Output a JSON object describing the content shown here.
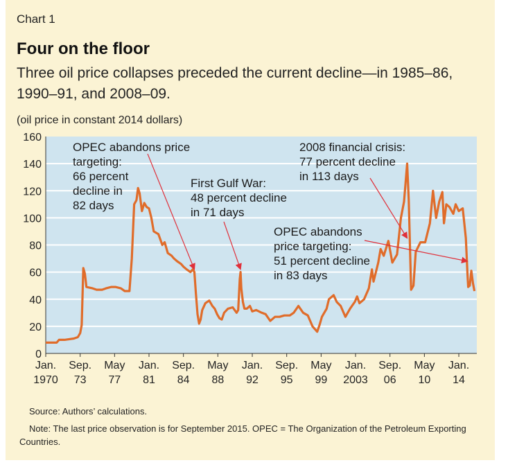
{
  "header": {
    "chart_number": "Chart 1",
    "title": "Four on the floor",
    "subtitle": "Three oil price collapses preceded the current decline—in 1985–86, 1990–91, and 2008–09.",
    "unit_label": "(oil price in constant 2014 dollars)"
  },
  "footer": {
    "source": "Source: Authors’ calculations.",
    "note": "Note: The last price observation is for September 2015. OPEC = The Organization of the Petroleum Exporting Countries."
  },
  "colors": {
    "panel_background": "#fbf3d4",
    "plot_background": "#cfe4ef",
    "line": "#e06c2a",
    "gridline": "#ffffff",
    "arrow": "#e0303a"
  },
  "chart_data": {
    "type": "line",
    "ylim": [
      0,
      160
    ],
    "yticks": [
      0,
      20,
      40,
      60,
      80,
      100,
      120,
      140,
      160
    ],
    "grid": true,
    "xlim": [
      "1970-01",
      "2015-12"
    ],
    "xtick_labels": [
      {
        "month": "Jan.",
        "year": "1970",
        "at": "1970-01"
      },
      {
        "month": "Sep.",
        "year": "73",
        "at": "1973-09"
      },
      {
        "month": "May",
        "year": "77",
        "at": "1977-05"
      },
      {
        "month": "Jan.",
        "year": "81",
        "at": "1981-01"
      },
      {
        "month": "Sep.",
        "year": "84",
        "at": "1984-09"
      },
      {
        "month": "May",
        "year": "88",
        "at": "1988-05"
      },
      {
        "month": "Jan.",
        "year": "92",
        "at": "1992-01"
      },
      {
        "month": "Sep.",
        "year": "95",
        "at": "1995-09"
      },
      {
        "month": "May",
        "year": "99",
        "at": "1999-05"
      },
      {
        "month": "Jan.",
        "year": "2003",
        "at": "2003-01"
      },
      {
        "month": "Sep.",
        "year": "06",
        "at": "2006-09"
      },
      {
        "month": "May",
        "year": "10",
        "at": "2010-05"
      },
      {
        "month": "Jan.",
        "year": "14",
        "at": "2014-01"
      }
    ],
    "series": [
      {
        "points": [
          [
            "1970-01",
            8
          ],
          [
            "1971-03",
            8
          ],
          [
            "1971-06",
            10
          ],
          [
            "1972-01",
            10
          ],
          [
            "1973-01",
            11
          ],
          [
            "1973-06",
            12
          ],
          [
            "1973-09",
            15
          ],
          [
            "1973-11",
            21
          ],
          [
            "1974-01",
            63
          ],
          [
            "1974-03",
            59
          ],
          [
            "1974-05",
            49
          ],
          [
            "1975-01",
            48
          ],
          [
            "1975-06",
            47
          ],
          [
            "1976-01",
            47
          ],
          [
            "1976-06",
            48
          ],
          [
            "1977-01",
            49
          ],
          [
            "1977-06",
            49
          ],
          [
            "1978-01",
            48
          ],
          [
            "1978-06",
            46
          ],
          [
            "1978-12",
            46
          ],
          [
            "1979-03",
            70
          ],
          [
            "1979-06",
            110
          ],
          [
            "1979-09",
            113
          ],
          [
            "1979-11",
            122
          ],
          [
            "1980-01",
            118
          ],
          [
            "1980-04",
            105
          ],
          [
            "1980-07",
            111
          ],
          [
            "1980-10",
            108
          ],
          [
            "1981-01",
            107
          ],
          [
            "1981-04",
            100
          ],
          [
            "1981-07",
            90
          ],
          [
            "1981-10",
            89
          ],
          [
            "1982-01",
            88
          ],
          [
            "1982-06",
            80
          ],
          [
            "1982-09",
            82
          ],
          [
            "1983-01",
            74
          ],
          [
            "1983-06",
            72
          ],
          [
            "1983-09",
            70
          ],
          [
            "1984-01",
            68
          ],
          [
            "1984-06",
            66
          ],
          [
            "1984-09",
            64
          ],
          [
            "1985-01",
            62
          ],
          [
            "1985-06",
            60
          ],
          [
            "1985-09",
            62
          ],
          [
            "1985-11",
            60
          ],
          [
            "1986-01",
            44
          ],
          [
            "1986-03",
            29
          ],
          [
            "1986-05",
            22
          ],
          [
            "1986-07",
            25
          ],
          [
            "1986-09",
            32
          ],
          [
            "1987-01",
            37
          ],
          [
            "1987-06",
            39
          ],
          [
            "1987-10",
            35
          ],
          [
            "1988-01",
            33
          ],
          [
            "1988-04",
            29
          ],
          [
            "1988-07",
            26
          ],
          [
            "1988-10",
            25
          ],
          [
            "1989-01",
            30
          ],
          [
            "1989-06",
            33
          ],
          [
            "1989-12",
            34
          ],
          [
            "1990-05",
            30
          ],
          [
            "1990-07",
            32
          ],
          [
            "1990-09",
            55
          ],
          [
            "1990-10",
            60
          ],
          [
            "1990-11",
            48
          ],
          [
            "1991-01",
            38
          ],
          [
            "1991-03",
            33
          ],
          [
            "1991-06",
            33
          ],
          [
            "1991-10",
            35
          ],
          [
            "1992-01",
            31
          ],
          [
            "1992-06",
            32
          ],
          [
            "1993-01",
            30
          ],
          [
            "1993-06",
            29
          ],
          [
            "1993-12",
            24
          ],
          [
            "1994-06",
            27
          ],
          [
            "1994-12",
            27
          ],
          [
            "1995-06",
            28
          ],
          [
            "1996-01",
            28
          ],
          [
            "1996-06",
            30
          ],
          [
            "1996-12",
            35
          ],
          [
            "1997-06",
            30
          ],
          [
            "1997-12",
            28
          ],
          [
            "1998-06",
            20
          ],
          [
            "1998-12",
            16
          ],
          [
            "1999-03",
            21
          ],
          [
            "1999-06",
            27
          ],
          [
            "1999-12",
            33
          ],
          [
            "2000-03",
            40
          ],
          [
            "2000-09",
            43
          ],
          [
            "2001-01",
            38
          ],
          [
            "2001-06",
            35
          ],
          [
            "2001-12",
            27
          ],
          [
            "2002-06",
            33
          ],
          [
            "2002-12",
            38
          ],
          [
            "2003-03",
            42
          ],
          [
            "2003-06",
            37
          ],
          [
            "2003-12",
            40
          ],
          [
            "2004-06",
            48
          ],
          [
            "2004-10",
            62
          ],
          [
            "2004-12",
            53
          ],
          [
            "2005-06",
            67
          ],
          [
            "2005-09",
            77
          ],
          [
            "2006-01",
            72
          ],
          [
            "2006-07",
            83
          ],
          [
            "2006-12",
            67
          ],
          [
            "2007-06",
            73
          ],
          [
            "2007-11",
            100
          ],
          [
            "2008-03",
            112
          ],
          [
            "2008-07",
            140
          ],
          [
            "2008-09",
            113
          ],
          [
            "2008-12",
            47
          ],
          [
            "2009-03",
            50
          ],
          [
            "2009-06",
            75
          ],
          [
            "2009-12",
            82
          ],
          [
            "2010-06",
            82
          ],
          [
            "2010-12",
            96
          ],
          [
            "2011-04",
            120
          ],
          [
            "2011-08",
            100
          ],
          [
            "2011-12",
            112
          ],
          [
            "2012-04",
            119
          ],
          [
            "2012-06",
            96
          ],
          [
            "2012-09",
            110
          ],
          [
            "2013-01",
            108
          ],
          [
            "2013-06",
            103
          ],
          [
            "2013-09",
            110
          ],
          [
            "2014-01",
            105
          ],
          [
            "2014-06",
            107
          ],
          [
            "2014-10",
            85
          ],
          [
            "2014-12",
            59
          ],
          [
            "2015-01",
            49
          ],
          [
            "2015-03",
            50
          ],
          [
            "2015-05",
            61
          ],
          [
            "2015-07",
            52
          ],
          [
            "2015-09",
            46
          ]
        ]
      }
    ],
    "annotations": [
      {
        "lines": [
          "OPEC abandons price",
          "targeting:",
          "66 percent",
          "decline in",
          "82 days"
        ],
        "target": [
          "1985-11",
          62
        ]
      },
      {
        "lines": [
          "First Gulf War:",
          "48 percent decline",
          "in 71 days"
        ],
        "target": [
          "1990-10",
          62
        ]
      },
      {
        "lines": [
          "2008 financial crisis:",
          "77 percent decline",
          "in 113 days"
        ],
        "target": [
          "2008-07",
          85
        ]
      },
      {
        "lines": [
          "OPEC abandons",
          "price targeting:",
          "51 percent decline",
          "in 83 days"
        ],
        "target": [
          "2014-12",
          68
        ]
      }
    ]
  }
}
